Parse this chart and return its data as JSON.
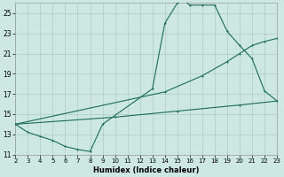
{
  "xlabel": "Humidex (Indice chaleur)",
  "bg_color": "#cce8e0",
  "grid_color": "#aaccC4",
  "line_color": "#1a6b5a",
  "xlim": [
    2,
    23
  ],
  "ylim": [
    11,
    26
  ],
  "xticks": [
    2,
    3,
    4,
    5,
    6,
    7,
    8,
    9,
    10,
    11,
    12,
    13,
    14,
    15,
    16,
    17,
    18,
    19,
    20,
    21,
    22,
    23
  ],
  "yticks": [
    11,
    13,
    15,
    17,
    19,
    21,
    23,
    25
  ],
  "s1_x": [
    2,
    3,
    4,
    5,
    6,
    7,
    8,
    9,
    13,
    14,
    15,
    15.5,
    16,
    17,
    18,
    19,
    20,
    21,
    22,
    23
  ],
  "s1_y": [
    14.0,
    13.2,
    12.8,
    12.4,
    11.8,
    11.5,
    11.3,
    14.0,
    17.5,
    24.0,
    26.0,
    26.3,
    25.8,
    25.8,
    25.8,
    23.2,
    21.8,
    20.5,
    17.3,
    16.3
  ],
  "s2_x": [
    2,
    14,
    17,
    19,
    20,
    21,
    22,
    23
  ],
  "s2_y": [
    14.0,
    17.2,
    18.8,
    20.2,
    21.0,
    21.8,
    22.2,
    22.5
  ],
  "s3_x": [
    2,
    10,
    15,
    20,
    23
  ],
  "s3_y": [
    14.0,
    14.7,
    15.3,
    15.9,
    16.3
  ]
}
